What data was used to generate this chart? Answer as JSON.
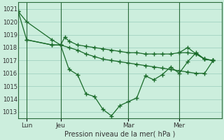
{
  "bg_color": "#cceedd",
  "grid_color": "#99ccbb",
  "line_color": "#1a6b2a",
  "xlabel": "Pression niveau de la mer( hPa )",
  "ylim": [
    1012.5,
    1021.5
  ],
  "yticks": [
    1013,
    1014,
    1015,
    1016,
    1017,
    1018,
    1019,
    1020,
    1021
  ],
  "xtick_labels": [
    "Lun",
    "Jeu",
    "Mar",
    "Mer"
  ],
  "xtick_positions": [
    1,
    5,
    13,
    19
  ],
  "vlines": [
    1,
    5,
    13,
    19
  ],
  "xlim": [
    0,
    24
  ],
  "series1_x": [
    0,
    1,
    4,
    5,
    5.5,
    6,
    7,
    8,
    9,
    10,
    11,
    12,
    13,
    14,
    15,
    16,
    17,
    18,
    19,
    20,
    21,
    22,
    23
  ],
  "series1_y": [
    1020.8,
    1020.0,
    1018.6,
    1018.2,
    1018.8,
    1018.5,
    1018.2,
    1018.1,
    1018.0,
    1017.9,
    1017.8,
    1017.7,
    1017.6,
    1017.6,
    1017.5,
    1017.5,
    1017.5,
    1017.5,
    1017.6,
    1017.6,
    1017.5,
    1017.1,
    1017.0
  ],
  "series2_x": [
    0,
    1,
    4,
    5,
    6,
    7,
    8,
    9,
    10,
    11,
    12,
    13,
    14,
    15,
    16,
    17,
    18,
    19,
    20,
    21,
    22,
    23
  ],
  "series2_y": [
    1020.8,
    1018.6,
    1018.2,
    1018.2,
    1018.0,
    1017.8,
    1017.5,
    1017.3,
    1017.1,
    1017.0,
    1016.9,
    1016.8,
    1016.7,
    1016.6,
    1016.5,
    1016.4,
    1016.3,
    1016.2,
    1016.1,
    1016.0,
    1016.0,
    1017.0
  ],
  "series3_x": [
    1,
    4,
    5,
    6,
    7,
    8,
    9,
    10,
    11,
    12,
    13,
    14,
    15,
    16,
    17,
    18,
    19,
    20,
    21,
    22,
    23
  ],
  "series3_y": [
    1018.6,
    1018.2,
    1018.2,
    1016.3,
    1015.9,
    1014.4,
    1014.2,
    1013.2,
    1012.7,
    1013.5,
    1013.8,
    1014.1,
    1015.8,
    1015.5,
    1015.9,
    1016.5,
    1016.0,
    1016.9,
    1017.6,
    1017.1,
    1017.0
  ],
  "series4_x": [
    19,
    20,
    21,
    22,
    23
  ],
  "series4_y": [
    1017.6,
    1018.0,
    1017.5,
    1017.1,
    1017.0
  ]
}
